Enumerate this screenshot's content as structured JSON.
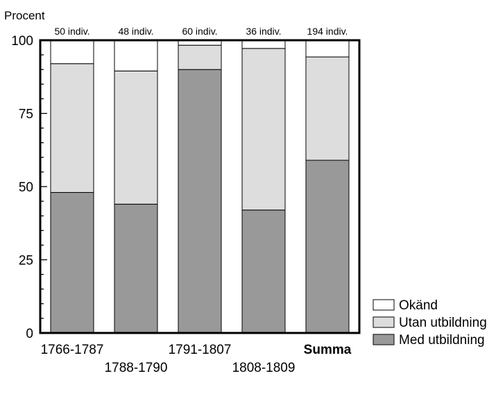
{
  "chart_data": {
    "type": "bar",
    "stacked": true,
    "ylabel": "Procent",
    "ylim": [
      0,
      100
    ],
    "yticks": [
      0,
      25,
      50,
      75,
      100
    ],
    "grid": false,
    "legend_position": "bottom-right",
    "categories": [
      "1766-1787",
      "1788-1790",
      "1791-1807",
      "1808-1809",
      "Summa"
    ],
    "annotations": [
      "50 indiv.",
      "48 indiv.",
      "60 indiv.",
      "36 indiv.",
      "194 indiv."
    ],
    "series": [
      {
        "name": "Med utbildning",
        "color": "#999999",
        "values": [
          48,
          44,
          90,
          42,
          59
        ]
      },
      {
        "name": "Utan utbildning",
        "color": "#dddddd",
        "values": [
          44,
          45.5,
          8.3,
          55.2,
          35.3
        ]
      },
      {
        "name": "Okänd",
        "color": "#ffffff",
        "values": [
          8,
          10.5,
          1.7,
          2.8,
          5.7
        ]
      }
    ],
    "legend_order": [
      "Okänd",
      "Utan utbildning",
      "Med utbildning"
    ]
  }
}
